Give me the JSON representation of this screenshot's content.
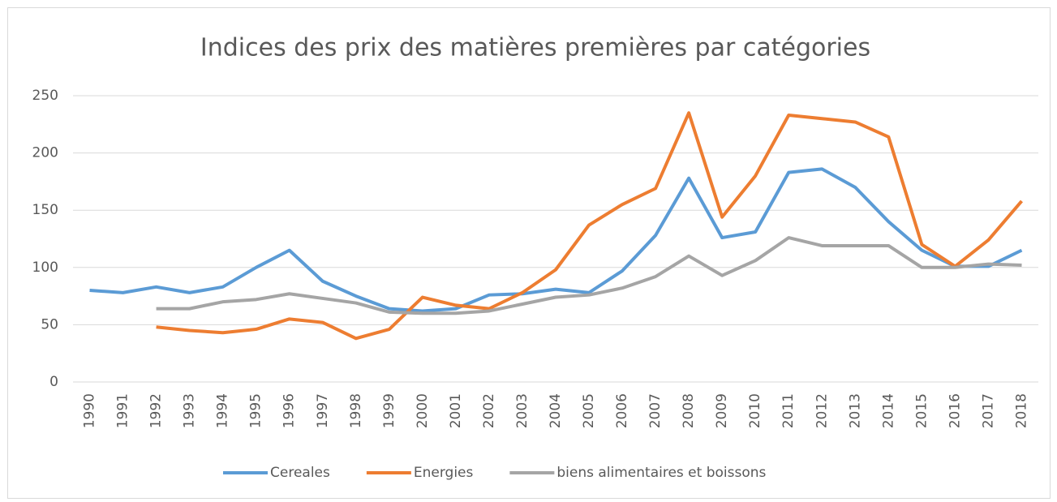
{
  "chart_data": {
    "type": "line",
    "title": "Indices des prix des matières premières par catégories",
    "categories": [
      "1990",
      "1991",
      "1992",
      "1993",
      "1994",
      "1995",
      "1996",
      "1997",
      "1998",
      "1999",
      "2000",
      "2001",
      "2002",
      "2003",
      "2004",
      "2005",
      "2006",
      "2007",
      "2008",
      "2009",
      "2010",
      "2011",
      "2012",
      "2013",
      "2014",
      "2015",
      "2016",
      "2017",
      "2018"
    ],
    "series": [
      {
        "name": "Cereales",
        "color": "#5b9bd5",
        "values": [
          80,
          78,
          83,
          78,
          83,
          100,
          115,
          88,
          75,
          64,
          62,
          64,
          76,
          77,
          81,
          78,
          97,
          128,
          178,
          126,
          131,
          183,
          186,
          170,
          140,
          115,
          101,
          101,
          115
        ]
      },
      {
        "name": "Energies",
        "color": "#ed7d31",
        "values": [
          null,
          null,
          48,
          45,
          43,
          46,
          55,
          52,
          38,
          46,
          74,
          67,
          64,
          78,
          98,
          137,
          155,
          169,
          235,
          144,
          180,
          233,
          230,
          227,
          214,
          120,
          101,
          124,
          158
        ]
      },
      {
        "name": "biens alimentaires et boissons",
        "color": "#a5a5a5",
        "values": [
          null,
          null,
          64,
          64,
          70,
          72,
          77,
          73,
          69,
          61,
          60,
          60,
          62,
          68,
          74,
          76,
          82,
          92,
          110,
          93,
          106,
          126,
          119,
          119,
          119,
          100,
          100,
          103,
          102
        ]
      }
    ],
    "ylim": [
      0,
      250
    ],
    "yticks": [
      0,
      50,
      100,
      150,
      200,
      250
    ],
    "grid": true,
    "legend": "bottom"
  }
}
